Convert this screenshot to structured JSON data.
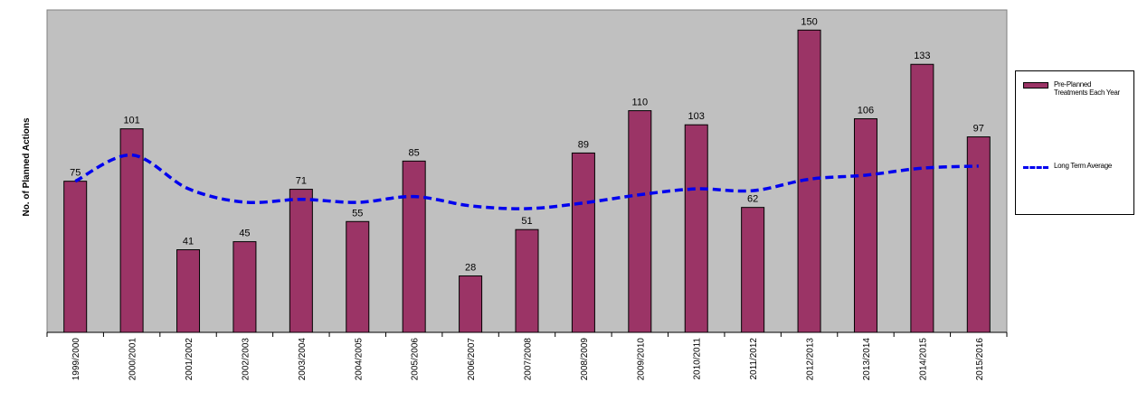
{
  "chart_data": {
    "type": "bar",
    "categories": [
      "1999/2000",
      "2000/2001",
      "2001/2002",
      "2002/2003",
      "2003/2004",
      "2004/2005",
      "2005/2006",
      "2006/2007",
      "2007/2008",
      "2008/2009",
      "2009/2010",
      "2010/2011",
      "2011/2012",
      "2012/2013",
      "2013/2014",
      "2014/2015",
      "2015/2016"
    ],
    "series": [
      {
        "name": "Pre-Planned Treatments Each Year",
        "type": "bar",
        "color": "#9b3466",
        "values": [
          75,
          101,
          41,
          45,
          71,
          55,
          85,
          28,
          51,
          89,
          110,
          103,
          62,
          150,
          106,
          133,
          97
        ]
      },
      {
        "name": "Long Term Average",
        "type": "line",
        "style": "dashed",
        "color": "#0000ee",
        "values": [
          75,
          88,
          71.3,
          64.6,
          66,
          64.5,
          67.4,
          62.8,
          61.4,
          64.2,
          68.3,
          71.2,
          70.3,
          76,
          78,
          81.5,
          82.5
        ]
      }
    ],
    "title": "",
    "xlabel": "",
    "ylabel": "No. of Planned Actions",
    "ylim": [
      0,
      160
    ],
    "plot_background": "#c0c0c0",
    "grid": false,
    "legend_position": "right"
  }
}
